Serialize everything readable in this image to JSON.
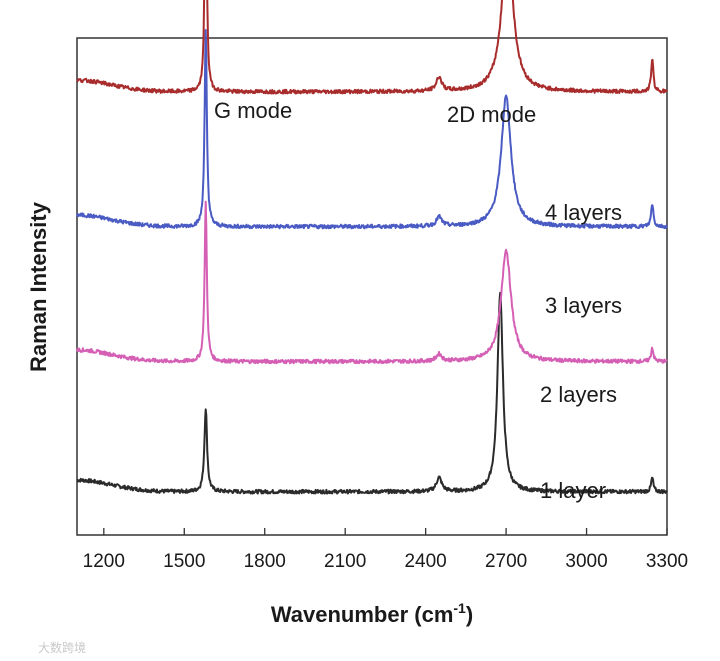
{
  "chart_data": {
    "type": "line",
    "xlabel": "Wavenumber (cm",
    "xlabel_sup": "-1",
    "xlabel_close": ")",
    "ylabel": "Raman Intensity",
    "xlim": [
      1100,
      3300
    ],
    "xticks": [
      1200,
      1500,
      1800,
      2100,
      2400,
      2700,
      3000,
      3300
    ],
    "yticks_shown": false,
    "grid": false,
    "annotations": [
      "G mode",
      "2D mode"
    ],
    "series": [
      {
        "name": "1 layer",
        "color": "#2b2b2b",
        "baseline": 0.05,
        "peaks": [
          {
            "center": 1580,
            "height": 0.18,
            "width": 6
          },
          {
            "center": 2450,
            "height": 0.03,
            "width": 12
          },
          {
            "center": 2678,
            "height": 0.43,
            "width": 12
          },
          {
            "center": 3245,
            "height": 0.03,
            "width": 5
          }
        ]
      },
      {
        "name": "2 layers",
        "color": "#d45fb4",
        "baseline": 0.33,
        "peaks": [
          {
            "center": 1580,
            "height": 0.34,
            "width": 5
          },
          {
            "center": 2450,
            "height": 0.015,
            "width": 12
          },
          {
            "center": 2700,
            "height": 0.24,
            "width": 22
          },
          {
            "center": 3245,
            "height": 0.03,
            "width": 5
          }
        ]
      },
      {
        "name": "3 layers",
        "color": "#4a5bc4",
        "baseline": 0.62,
        "peaks": [
          {
            "center": 1580,
            "height": 0.42,
            "width": 5
          },
          {
            "center": 2450,
            "height": 0.02,
            "width": 12
          },
          {
            "center": 2700,
            "height": 0.28,
            "width": 22
          },
          {
            "center": 3245,
            "height": 0.05,
            "width": 5
          }
        ]
      },
      {
        "name": "4 layers",
        "color": "#a82c2c",
        "baseline": 0.91,
        "peaks": [
          {
            "center": 1580,
            "height": 0.64,
            "width": 4
          },
          {
            "center": 2450,
            "height": 0.03,
            "width": 12
          },
          {
            "center": 2705,
            "height": 0.34,
            "width": 24
          },
          {
            "center": 3245,
            "height": 0.07,
            "width": 5
          }
        ]
      }
    ],
    "series_labels": [
      "4 layers",
      "3 layers",
      "2 layers",
      "1 layer"
    ]
  },
  "watermark": "大数跨境"
}
